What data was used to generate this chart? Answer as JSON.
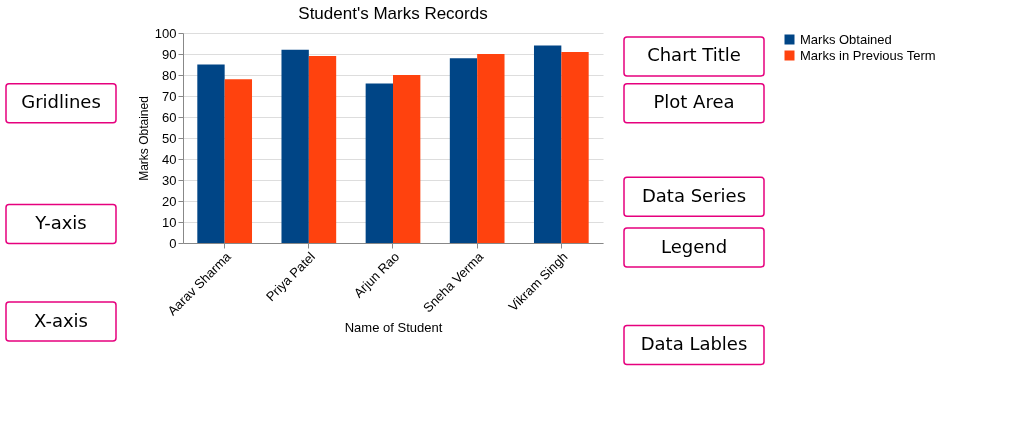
{
  "chart_data": {
    "type": "bar",
    "title": "Student's Marks Records",
    "xlabel": "Name of Student",
    "ylabel": "Marks Obtained",
    "categories": [
      "Aarav Sharma",
      "Priya Patel",
      "Arjun Rao",
      "Sneha Verma",
      "Vikram Singh"
    ],
    "series": [
      {
        "name": "Marks Obtained",
        "color": "#004586",
        "values": [
          85,
          92,
          76,
          88,
          94
        ]
      },
      {
        "name": "Marks in Previous Term",
        "color": "#ff420e",
        "values": [
          78,
          89,
          80,
          90,
          91
        ]
      }
    ],
    "ylim": [
      0,
      100
    ],
    "yticks": [
      0,
      10,
      20,
      30,
      40,
      50,
      60,
      70,
      80,
      90,
      100
    ],
    "grid": "y",
    "legend": "right",
    "annotations": [
      "Chart Title",
      "Plot Area",
      "Data Series",
      "Legend",
      "Data Lables",
      "Gridlines",
      "Y-axis",
      "X-axis"
    ]
  }
}
